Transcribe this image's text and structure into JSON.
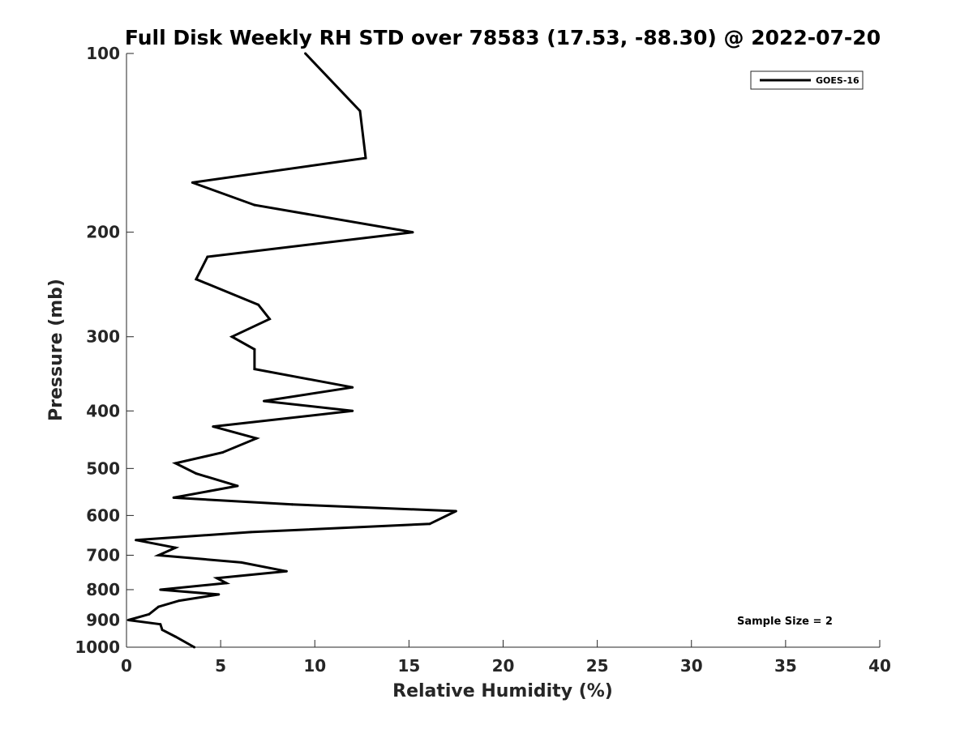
{
  "chart_data": {
    "type": "line",
    "title": "Full Disk Weekly RH STD over 78583 (17.53, -88.30) @ 2022-07-20",
    "xlabel": "Relative Humidity (%)",
    "ylabel": "Pressure (mb)",
    "xlim": [
      0,
      40
    ],
    "ylim": [
      100,
      1000
    ],
    "y_scale": "log",
    "y_direction": "reversed",
    "grid": false,
    "legend_position": "top-right",
    "x_ticks": [
      0,
      5,
      10,
      15,
      20,
      25,
      30,
      35,
      40
    ],
    "x_tick_labels": [
      "0",
      "5",
      "10",
      "15",
      "20",
      "25",
      "30",
      "35",
      "40"
    ],
    "y_ticks": [
      100,
      200,
      300,
      400,
      500,
      600,
      700,
      800,
      900,
      1000
    ],
    "y_tick_labels": [
      "100",
      "200",
      "300",
      "400",
      "500",
      "600",
      "700",
      "800",
      "900",
      "1000"
    ],
    "series": [
      {
        "name": "GOES-16",
        "color": "#000000",
        "points": [
          [
            9.5,
            100
          ],
          [
            12.4,
            125
          ],
          [
            12.7,
            150
          ],
          [
            3.5,
            165
          ],
          [
            6.8,
            180
          ],
          [
            15.2,
            200
          ],
          [
            4.3,
            220
          ],
          [
            3.7,
            240
          ],
          [
            7.0,
            265
          ],
          [
            7.6,
            280
          ],
          [
            5.6,
            300
          ],
          [
            6.8,
            315
          ],
          [
            6.8,
            340
          ],
          [
            12.0,
            365
          ],
          [
            7.3,
            385
          ],
          [
            12.0,
            400
          ],
          [
            4.6,
            425
          ],
          [
            6.9,
            445
          ],
          [
            5.1,
            470
          ],
          [
            2.6,
            490
          ],
          [
            3.7,
            510
          ],
          [
            5.9,
            535
          ],
          [
            2.5,
            560
          ],
          [
            8.8,
            575
          ],
          [
            17.5,
            590
          ],
          [
            16.1,
            620
          ],
          [
            6.6,
            640
          ],
          [
            0.5,
            660
          ],
          [
            2.6,
            680
          ],
          [
            1.7,
            700
          ],
          [
            6.1,
            720
          ],
          [
            8.5,
            745
          ],
          [
            4.8,
            765
          ],
          [
            5.3,
            780
          ],
          [
            1.8,
            800
          ],
          [
            4.9,
            815
          ],
          [
            2.8,
            835
          ],
          [
            1.7,
            855
          ],
          [
            1.2,
            880
          ],
          [
            0.1,
            900
          ],
          [
            1.8,
            915
          ],
          [
            1.9,
            935
          ],
          [
            2.6,
            960
          ],
          [
            3.6,
            1000
          ]
        ]
      }
    ],
    "annotations": [
      {
        "text": "Sample Size = 2"
      }
    ]
  }
}
